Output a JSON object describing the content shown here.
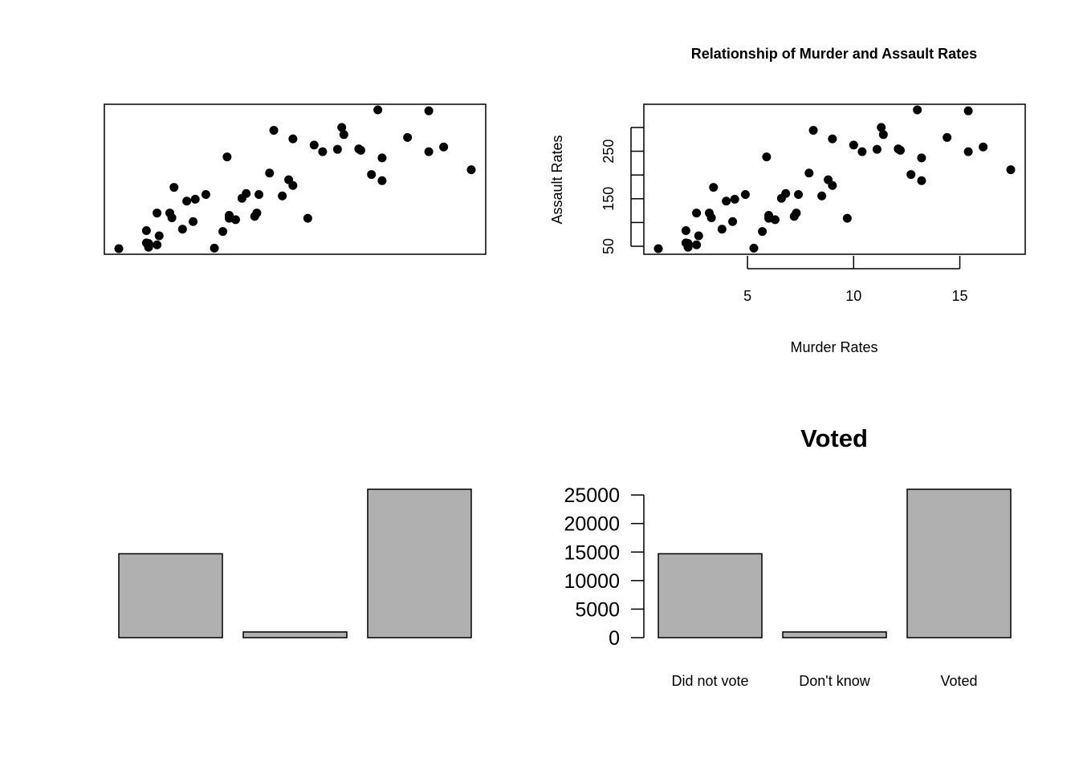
{
  "colors": {
    "bar_fill": "#b0b0b0",
    "point": "#000000",
    "background": "#ffffff"
  },
  "chart_data": [
    {
      "type": "scatter",
      "title": "",
      "xlabel": "",
      "ylabel": "",
      "axes_shown": false,
      "xlim": [
        0.8,
        17.4
      ],
      "ylim": [
        45,
        337
      ],
      "x": [
        13.2,
        10.0,
        8.1,
        8.8,
        9.0,
        7.9,
        3.3,
        5.9,
        15.4,
        17.4,
        5.3,
        2.6,
        10.4,
        7.2,
        2.2,
        6.0,
        9.7,
        15.4,
        2.1,
        11.3,
        4.4,
        12.1,
        2.7,
        16.1,
        9.0,
        6.0,
        4.3,
        12.2,
        2.1,
        7.4,
        11.4,
        11.1,
        13.0,
        0.8,
        7.3,
        6.6,
        4.9,
        6.3,
        3.4,
        14.4,
        3.8,
        13.2,
        12.7,
        3.2,
        2.2,
        8.5,
        4.0,
        5.7,
        2.6,
        6.8
      ],
      "y": [
        236,
        263,
        294,
        190,
        276,
        204,
        110,
        238,
        335,
        211,
        46,
        120,
        249,
        113,
        56,
        115,
        109,
        249,
        83,
        300,
        149,
        255,
        72,
        259,
        178,
        109,
        102,
        252,
        57,
        159,
        285,
        254,
        337,
        45,
        120,
        151,
        159,
        106,
        174,
        279,
        86,
        188,
        201,
        120,
        48,
        156,
        145,
        81,
        53,
        161
      ]
    },
    {
      "type": "scatter",
      "title": "Relationship of Murder and Assault Rates",
      "xlabel": "Murder Rates",
      "ylabel": "Assault Rates",
      "xlim": [
        0.8,
        17.4
      ],
      "ylim": [
        45,
        337
      ],
      "xticks": [
        5,
        10,
        15
      ],
      "yticks": [
        50,
        100,
        150,
        200,
        250,
        300
      ],
      "ytick_labels": [
        "50",
        "",
        "150",
        "",
        "250",
        ""
      ],
      "x": [
        13.2,
        10.0,
        8.1,
        8.8,
        9.0,
        7.9,
        3.3,
        5.9,
        15.4,
        17.4,
        5.3,
        2.6,
        10.4,
        7.2,
        2.2,
        6.0,
        9.7,
        15.4,
        2.1,
        11.3,
        4.4,
        12.1,
        2.7,
        16.1,
        9.0,
        6.0,
        4.3,
        12.2,
        2.1,
        7.4,
        11.4,
        11.1,
        13.0,
        0.8,
        7.3,
        6.6,
        4.9,
        6.3,
        3.4,
        14.4,
        3.8,
        13.2,
        12.7,
        3.2,
        2.2,
        8.5,
        4.0,
        5.7,
        2.6,
        6.8
      ],
      "y": [
        236,
        263,
        294,
        190,
        276,
        204,
        110,
        238,
        335,
        211,
        46,
        120,
        249,
        113,
        56,
        115,
        109,
        249,
        83,
        300,
        149,
        255,
        72,
        259,
        178,
        109,
        102,
        252,
        57,
        159,
        285,
        254,
        337,
        45,
        120,
        151,
        159,
        106,
        174,
        279,
        86,
        188,
        201,
        120,
        48,
        156,
        145,
        81,
        53,
        161
      ]
    },
    {
      "type": "bar",
      "title": "",
      "xlabel": "",
      "ylabel": "",
      "axes_shown": false,
      "categories": [
        "Did not vote",
        "Don't know",
        "Voted"
      ],
      "values": [
        14700,
        1000,
        26000
      ],
      "ylim": [
        0,
        26000
      ]
    },
    {
      "type": "bar",
      "title": "Voted",
      "xlabel": "",
      "ylabel": "",
      "categories": [
        "Did not vote",
        "Don't know",
        "Voted"
      ],
      "values": [
        14700,
        1000,
        26000
      ],
      "ylim": [
        0,
        26000
      ],
      "yticks": [
        0,
        5000,
        10000,
        15000,
        20000,
        25000
      ]
    }
  ]
}
